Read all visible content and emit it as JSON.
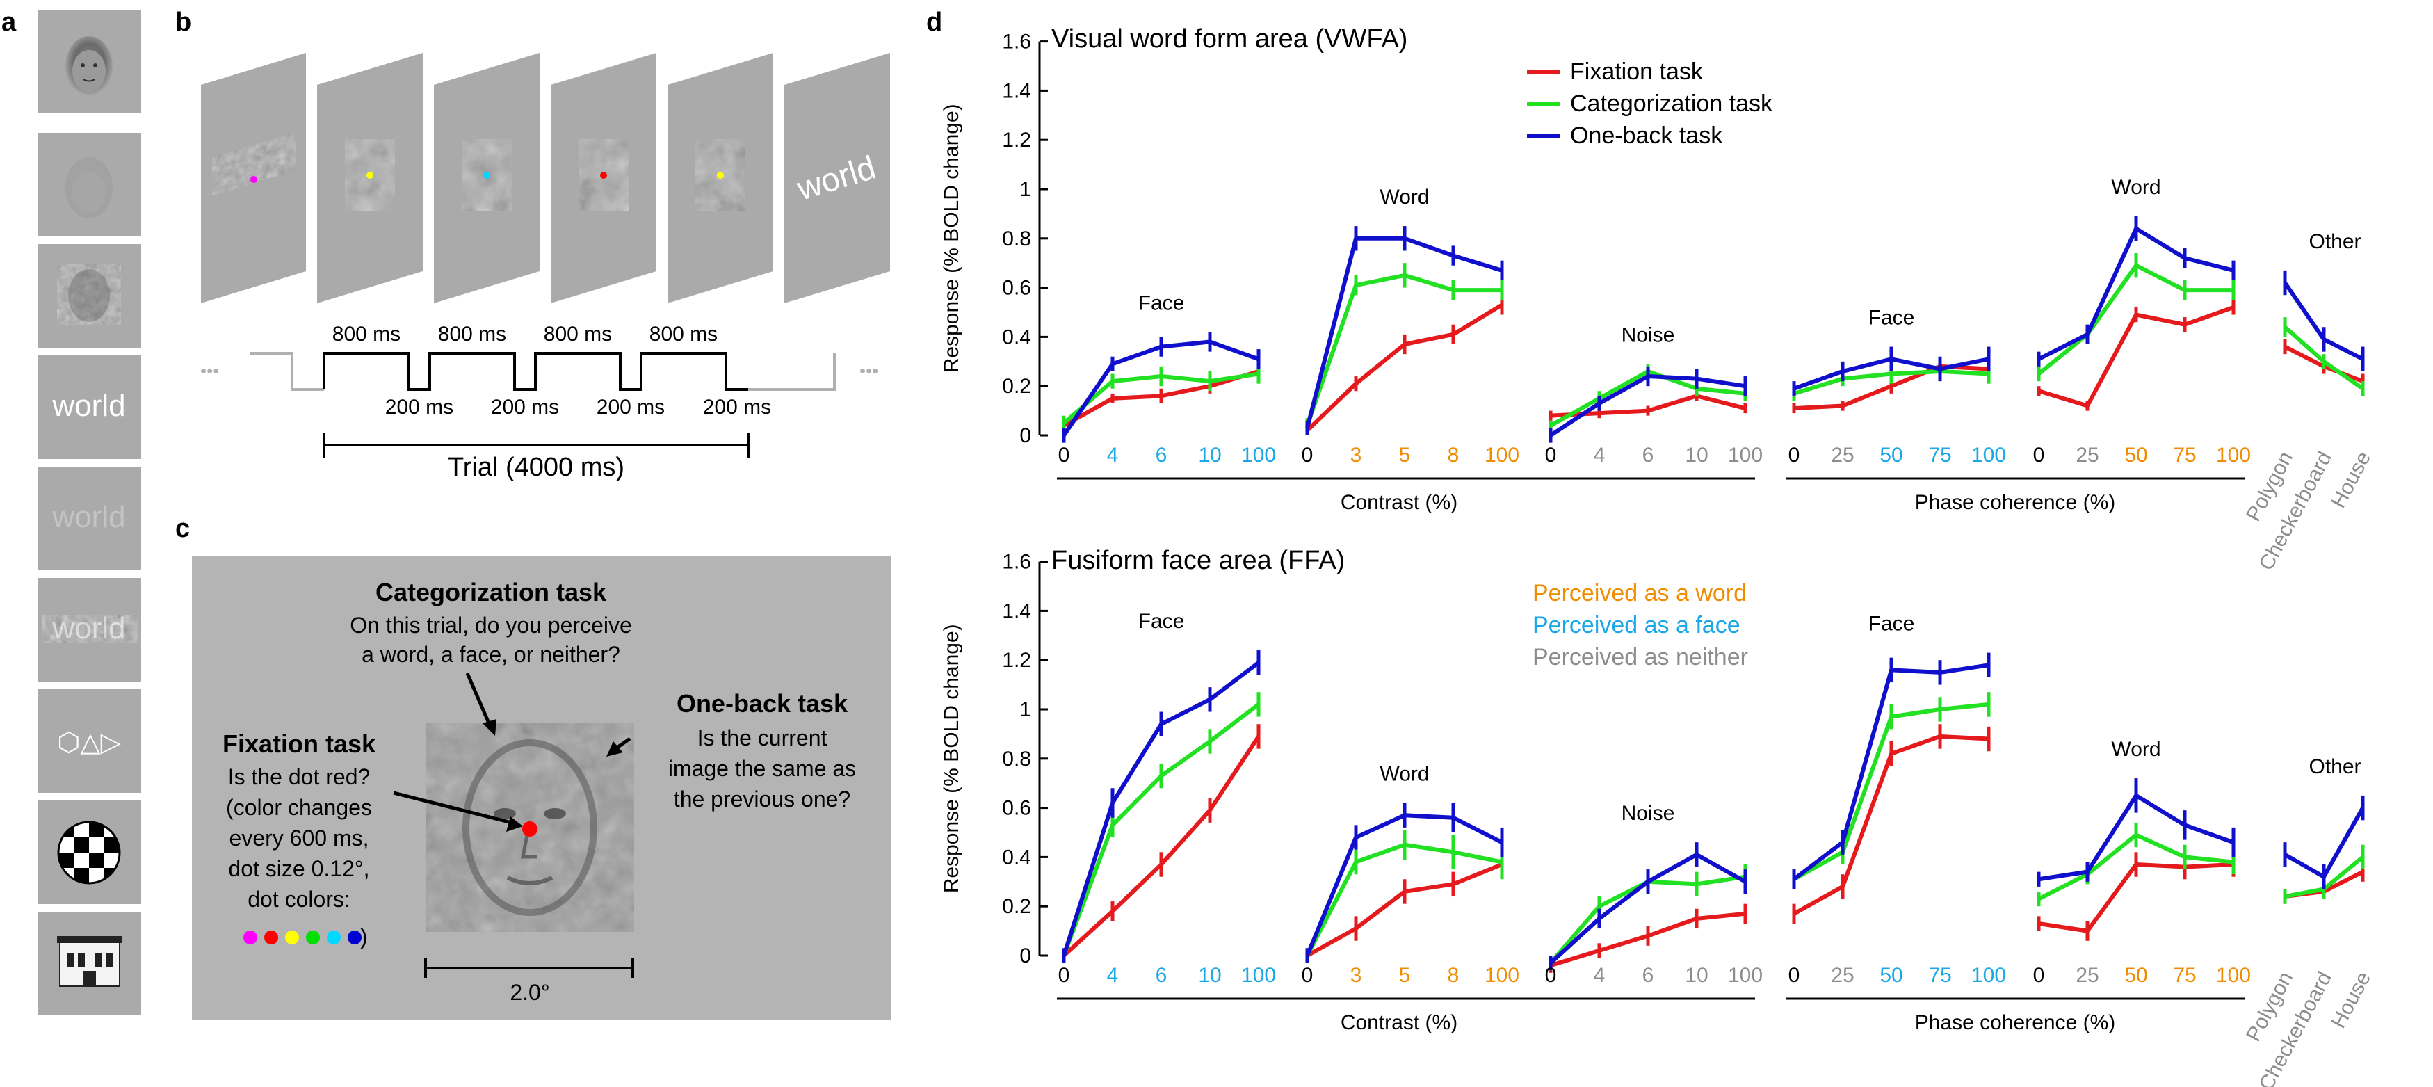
{
  "panel_labels": {
    "a": "a",
    "b": "b",
    "c": "c",
    "d": "d"
  },
  "panel_a": {
    "stimulus_words": [
      "world",
      "world",
      "world"
    ],
    "shape_glyphs": "⬡△▷"
  },
  "panel_b": {
    "final_word": "world",
    "on_label": "800 ms",
    "off_label": "200 ms",
    "trial_label": "Trial (4000 ms)",
    "ellipsis": "•••"
  },
  "panel_c": {
    "categorization_title": "Categorization task",
    "categorization_lines": [
      "On this trial, do you perceive",
      "a word, a face, or neither?"
    ],
    "oneback_title": "One-back task",
    "oneback_lines": [
      "Is the current",
      "image the same as",
      "the previous one?"
    ],
    "fixation_title": "Fixation task",
    "fixation_lines": [
      "Is the dot red?",
      "(color changes",
      "every 600 ms,",
      "dot size 0.12°,",
      "dot colors:"
    ],
    "fixation_close": ")",
    "scale_label": "2.0°",
    "dot_colors": [
      "#ff00ff",
      "#ff0000",
      "#ffff00",
      "#00e000",
      "#00d8ff",
      "#0000d0"
    ],
    "fixation_dot_color": "#ff0000"
  },
  "panel_d": {
    "task_colors": {
      "fixation": "#e41a1c",
      "categorization": "#22e022",
      "oneback": "#1010cc"
    },
    "tick_colors": {
      "word": "#f08c00",
      "face": "#1aa7e8",
      "neither": "#8c8c8c"
    },
    "legend_tasks": [
      "Fixation task",
      "Categorization task",
      "One-back task"
    ],
    "legend_percepts": [
      "Perceived as a word",
      "Perceived as a face",
      "Perceived as neither"
    ],
    "group_axis_labels": {
      "contrast": "Contrast (%)",
      "phase": "Phase coherence (%)"
    }
  },
  "chart_data": [
    {
      "type": "line",
      "title": "Visual word form area (VWFA)",
      "xlabel": "Contrast (%) / Phase coherence (%)",
      "ylabel": "Response (% BOLD change)",
      "ylim": [
        0,
        1.6
      ],
      "yticks": [
        "0",
        "0.2",
        "0.4",
        "0.6",
        "0.8",
        "1",
        "1.2",
        "1.4",
        "1.6"
      ],
      "groups": [
        {
          "label": "Face",
          "ticks": [
            "0",
            "4",
            "6",
            "10",
            "100"
          ],
          "tick_percepts": [
            "neither",
            "face",
            "face",
            "face",
            "face"
          ],
          "series": [
            {
              "name": "Fixation task",
              "values": [
                0.04,
                0.15,
                0.16,
                0.2,
                0.26
              ],
              "errors": [
                0.02,
                0.02,
                0.03,
                0.03,
                0.03
              ]
            },
            {
              "name": "Categorization task",
              "values": [
                0.05,
                0.22,
                0.24,
                0.22,
                0.25
              ],
              "errors": [
                0.03,
                0.03,
                0.04,
                0.04,
                0.04
              ]
            },
            {
              "name": "One-back task",
              "values": [
                0.0,
                0.29,
                0.36,
                0.38,
                0.31
              ],
              "errors": [
                0.03,
                0.03,
                0.04,
                0.04,
                0.04
              ]
            }
          ]
        },
        {
          "label": "Word",
          "ticks": [
            "0",
            "3",
            "5",
            "8",
            "100"
          ],
          "tick_percepts": [
            "neither",
            "word",
            "word",
            "word",
            "word"
          ],
          "series": [
            {
              "name": "Fixation task",
              "values": [
                0.02,
                0.21,
                0.37,
                0.41,
                0.53
              ],
              "errors": [
                0.02,
                0.03,
                0.04,
                0.04,
                0.04
              ]
            },
            {
              "name": "Categorization task",
              "values": [
                0.04,
                0.61,
                0.65,
                0.59,
                0.59
              ],
              "errors": [
                0.03,
                0.04,
                0.05,
                0.04,
                0.04
              ]
            },
            {
              "name": "One-back task",
              "values": [
                0.03,
                0.8,
                0.8,
                0.73,
                0.67
              ],
              "errors": [
                0.03,
                0.05,
                0.05,
                0.04,
                0.04
              ]
            }
          ]
        },
        {
          "label": "Noise",
          "ticks": [
            "0",
            "4",
            "6",
            "10",
            "100"
          ],
          "tick_percepts": [
            "neither",
            "neither",
            "neither",
            "neither",
            "neither"
          ],
          "series": [
            {
              "name": "Fixation task",
              "values": [
                0.08,
                0.09,
                0.1,
                0.16,
                0.11
              ],
              "errors": [
                0.02,
                0.02,
                0.02,
                0.02,
                0.02
              ]
            },
            {
              "name": "Categorization task",
              "values": [
                0.04,
                0.15,
                0.26,
                0.19,
                0.17
              ],
              "errors": [
                0.02,
                0.03,
                0.03,
                0.03,
                0.03
              ]
            },
            {
              "name": "One-back task",
              "values": [
                0.0,
                0.13,
                0.24,
                0.23,
                0.2
              ],
              "errors": [
                0.03,
                0.03,
                0.04,
                0.04,
                0.04
              ]
            }
          ]
        },
        {
          "label": "Face",
          "ticks": [
            "0",
            "25",
            "50",
            "75",
            "100"
          ],
          "tick_percepts": [
            "neither",
            "neither",
            "face",
            "face",
            "face"
          ],
          "series": [
            {
              "name": "Fixation task",
              "values": [
                0.11,
                0.12,
                0.2,
                0.28,
                0.27
              ],
              "errors": [
                0.02,
                0.02,
                0.03,
                0.03,
                0.03
              ]
            },
            {
              "name": "Categorization task",
              "values": [
                0.17,
                0.23,
                0.25,
                0.26,
                0.25
              ],
              "errors": [
                0.03,
                0.03,
                0.04,
                0.04,
                0.04
              ]
            },
            {
              "name": "One-back task",
              "values": [
                0.19,
                0.26,
                0.31,
                0.27,
                0.31
              ],
              "errors": [
                0.03,
                0.04,
                0.05,
                0.05,
                0.05
              ]
            }
          ]
        },
        {
          "label": "Word",
          "ticks": [
            "0",
            "25",
            "50",
            "75",
            "100"
          ],
          "tick_percepts": [
            "neither",
            "neither",
            "word",
            "word",
            "word"
          ],
          "series": [
            {
              "name": "Fixation task",
              "values": [
                0.18,
                0.12,
                0.49,
                0.45,
                0.52
              ],
              "errors": [
                0.02,
                0.02,
                0.03,
                0.03,
                0.03
              ]
            },
            {
              "name": "Categorization task",
              "values": [
                0.25,
                0.41,
                0.69,
                0.59,
                0.59
              ],
              "errors": [
                0.03,
                0.04,
                0.05,
                0.04,
                0.04
              ]
            },
            {
              "name": "One-back task",
              "values": [
                0.31,
                0.41,
                0.84,
                0.72,
                0.67
              ],
              "errors": [
                0.03,
                0.04,
                0.05,
                0.04,
                0.04
              ]
            }
          ]
        },
        {
          "label": "Other",
          "ticks": [
            "Polygon",
            "Checkerboard",
            "House"
          ],
          "tick_percepts": [
            "neither",
            "neither",
            "neither"
          ],
          "series": [
            {
              "name": "Fixation task",
              "values": [
                0.36,
                0.28,
                0.22
              ],
              "errors": [
                0.03,
                0.03,
                0.03
              ]
            },
            {
              "name": "Categorization task",
              "values": [
                0.44,
                0.3,
                0.19
              ],
              "errors": [
                0.04,
                0.03,
                0.03
              ]
            },
            {
              "name": "One-back task",
              "values": [
                0.62,
                0.39,
                0.31
              ],
              "errors": [
                0.05,
                0.05,
                0.05
              ]
            }
          ]
        }
      ]
    },
    {
      "type": "line",
      "title": "Fusiform face area (FFA)",
      "xlabel": "Contrast (%) / Phase coherence (%)",
      "ylabel": "Response (% BOLD change)",
      "ylim": [
        0,
        1.6
      ],
      "yticks": [
        "0",
        "0.2",
        "0.4",
        "0.6",
        "0.8",
        "1",
        "1.2",
        "1.4",
        "1.6"
      ],
      "groups": [
        {
          "label": "Face",
          "ticks": [
            "0",
            "4",
            "6",
            "10",
            "100"
          ],
          "tick_percepts": [
            "neither",
            "face",
            "face",
            "face",
            "face"
          ],
          "series": [
            {
              "name": "Fixation task",
              "values": [
                0.0,
                0.18,
                0.37,
                0.59,
                0.89
              ],
              "errors": [
                0.03,
                0.04,
                0.05,
                0.05,
                0.05
              ]
            },
            {
              "name": "Categorization task",
              "values": [
                0.0,
                0.53,
                0.73,
                0.87,
                1.02
              ],
              "errors": [
                0.03,
                0.05,
                0.05,
                0.05,
                0.05
              ]
            },
            {
              "name": "One-back task",
              "values": [
                0.0,
                0.62,
                0.94,
                1.04,
                1.19
              ],
              "errors": [
                0.03,
                0.06,
                0.05,
                0.05,
                0.05
              ]
            }
          ]
        },
        {
          "label": "Word",
          "ticks": [
            "0",
            "3",
            "5",
            "8",
            "100"
          ],
          "tick_percepts": [
            "neither",
            "word",
            "word",
            "word",
            "word"
          ],
          "series": [
            {
              "name": "Fixation task",
              "values": [
                0.0,
                0.11,
                0.26,
                0.29,
                0.37
              ],
              "errors": [
                0.03,
                0.05,
                0.05,
                0.05,
                0.05
              ]
            },
            {
              "name": "Categorization task",
              "values": [
                0.0,
                0.38,
                0.45,
                0.42,
                0.38
              ],
              "errors": [
                0.03,
                0.05,
                0.06,
                0.07,
                0.07
              ]
            },
            {
              "name": "One-back task",
              "values": [
                0.0,
                0.48,
                0.57,
                0.56,
                0.46
              ],
              "errors": [
                0.03,
                0.05,
                0.05,
                0.06,
                0.06
              ]
            }
          ]
        },
        {
          "label": "Noise",
          "ticks": [
            "0",
            "4",
            "6",
            "10",
            "100"
          ],
          "tick_percepts": [
            "neither",
            "neither",
            "neither",
            "neither",
            "neither"
          ],
          "series": [
            {
              "name": "Fixation task",
              "values": [
                -0.04,
                0.02,
                0.08,
                0.15,
                0.17
              ],
              "errors": [
                0.03,
                0.03,
                0.04,
                0.04,
                0.04
              ]
            },
            {
              "name": "Categorization task",
              "values": [
                -0.03,
                0.2,
                0.3,
                0.29,
                0.32
              ],
              "errors": [
                0.03,
                0.04,
                0.05,
                0.05,
                0.05
              ]
            },
            {
              "name": "One-back task",
              "values": [
                -0.03,
                0.15,
                0.3,
                0.41,
                0.3
              ],
              "errors": [
                0.03,
                0.04,
                0.05,
                0.05,
                0.05
              ]
            }
          ]
        },
        {
          "label": "Face",
          "ticks": [
            "0",
            "25",
            "50",
            "75",
            "100"
          ],
          "tick_percepts": [
            "neither",
            "neither",
            "face",
            "face",
            "face"
          ],
          "series": [
            {
              "name": "Fixation task",
              "values": [
                0.17,
                0.28,
                0.82,
                0.89,
                0.88
              ],
              "errors": [
                0.04,
                0.05,
                0.05,
                0.05,
                0.05
              ]
            },
            {
              "name": "Categorization task",
              "values": [
                0.31,
                0.42,
                0.97,
                1.0,
                1.02
              ],
              "errors": [
                0.04,
                0.05,
                0.05,
                0.05,
                0.05
              ]
            },
            {
              "name": "One-back task",
              "values": [
                0.31,
                0.46,
                1.16,
                1.15,
                1.18
              ],
              "errors": [
                0.04,
                0.05,
                0.05,
                0.05,
                0.05
              ]
            }
          ]
        },
        {
          "label": "Word",
          "ticks": [
            "0",
            "25",
            "50",
            "75",
            "100"
          ],
          "tick_percepts": [
            "neither",
            "neither",
            "word",
            "word",
            "word"
          ],
          "series": [
            {
              "name": "Fixation task",
              "values": [
                0.13,
                0.1,
                0.37,
                0.36,
                0.37
              ],
              "errors": [
                0.03,
                0.04,
                0.05,
                0.05,
                0.05
              ]
            },
            {
              "name": "Categorization task",
              "values": [
                0.23,
                0.33,
                0.49,
                0.4,
                0.38
              ],
              "errors": [
                0.03,
                0.04,
                0.05,
                0.05,
                0.05
              ]
            },
            {
              "name": "One-back task",
              "values": [
                0.31,
                0.34,
                0.65,
                0.53,
                0.46
              ],
              "errors": [
                0.03,
                0.04,
                0.07,
                0.06,
                0.06
              ]
            }
          ]
        },
        {
          "label": "Other",
          "ticks": [
            "Polygon",
            "Checkerboard",
            "House"
          ],
          "tick_percepts": [
            "neither",
            "neither",
            "neither"
          ],
          "series": [
            {
              "name": "Fixation task",
              "values": [
                0.24,
                0.26,
                0.34
              ],
              "errors": [
                0.03,
                0.03,
                0.04
              ]
            },
            {
              "name": "Categorization task",
              "values": [
                0.24,
                0.27,
                0.4
              ],
              "errors": [
                0.03,
                0.04,
                0.05
              ]
            },
            {
              "name": "One-back task",
              "values": [
                0.41,
                0.32,
                0.6
              ],
              "errors": [
                0.05,
                0.05,
                0.05
              ]
            }
          ]
        }
      ]
    }
  ]
}
